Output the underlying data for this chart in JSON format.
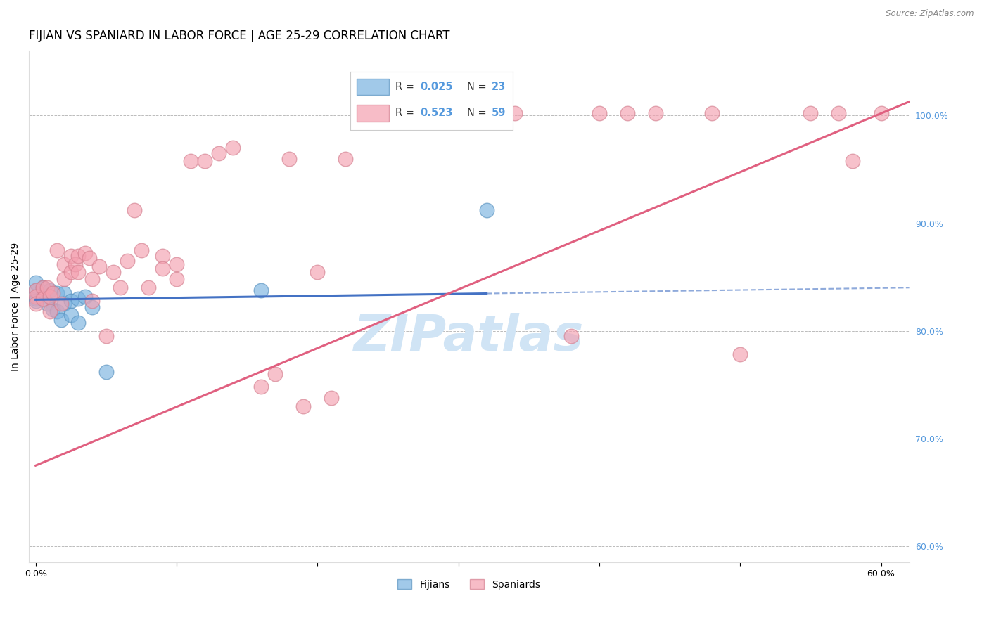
{
  "title": "FIJIAN VS SPANIARD IN LABOR FORCE | AGE 25-29 CORRELATION CHART",
  "source": "Source: ZipAtlas.com",
  "ylabel": "In Labor Force | Age 25-29",
  "xlim": [
    -0.005,
    0.62
  ],
  "ylim": [
    0.585,
    1.06
  ],
  "xtick_positions": [
    0.0,
    0.1,
    0.2,
    0.3,
    0.4,
    0.5,
    0.6
  ],
  "xticklabels": [
    "0.0%",
    "",
    "",
    "",
    "",
    "",
    "60.0%"
  ],
  "yticks_right": [
    0.6,
    0.7,
    0.8,
    0.9,
    1.0
  ],
  "yticklabels_right": [
    "60.0%",
    "70.0%",
    "80.0%",
    "90.0%",
    "100.0%"
  ],
  "fijian_color": "#7ab3e0",
  "fijian_edge_color": "#5a93c0",
  "spaniard_color": "#f4a0b0",
  "spaniard_edge_color": "#d48090",
  "fijian_line_color": "#4472c4",
  "spaniard_line_color": "#e06080",
  "background_color": "#ffffff",
  "grid_color": "#bbbbbb",
  "title_fontsize": 12,
  "axis_label_fontsize": 10,
  "tick_fontsize": 9,
  "right_tick_color": "#5599dd",
  "watermark_text": "ZIPatlas",
  "watermark_color": "#d0e4f5",
  "fijian_x": [
    0.0,
    0.0,
    0.0,
    0.0,
    0.005,
    0.005,
    0.008,
    0.01,
    0.012,
    0.015,
    0.015,
    0.018,
    0.02,
    0.02,
    0.025,
    0.025,
    0.03,
    0.03,
    0.035,
    0.04,
    0.05,
    0.16,
    0.32
  ],
  "fijian_y": [
    0.838,
    0.845,
    0.83,
    0.828,
    0.84,
    0.832,
    0.825,
    0.838,
    0.82,
    0.835,
    0.818,
    0.81,
    0.835,
    0.825,
    0.828,
    0.815,
    0.83,
    0.808,
    0.832,
    0.822,
    0.762,
    0.838,
    0.912
  ],
  "spaniard_x": [
    0.0,
    0.0,
    0.0,
    0.005,
    0.005,
    0.008,
    0.01,
    0.01,
    0.012,
    0.015,
    0.018,
    0.02,
    0.02,
    0.025,
    0.025,
    0.028,
    0.03,
    0.03,
    0.035,
    0.038,
    0.04,
    0.04,
    0.045,
    0.05,
    0.055,
    0.06,
    0.065,
    0.07,
    0.075,
    0.08,
    0.09,
    0.09,
    0.1,
    0.1,
    0.11,
    0.12,
    0.13,
    0.14,
    0.16,
    0.17,
    0.18,
    0.19,
    0.2,
    0.21,
    0.22,
    0.24,
    0.27,
    0.3,
    0.34,
    0.38,
    0.4,
    0.42,
    0.44,
    0.48,
    0.5,
    0.55,
    0.57,
    0.58,
    0.6
  ],
  "spaniard_y": [
    0.838,
    0.832,
    0.825,
    0.84,
    0.83,
    0.84,
    0.832,
    0.818,
    0.835,
    0.875,
    0.825,
    0.862,
    0.848,
    0.87,
    0.855,
    0.862,
    0.87,
    0.855,
    0.872,
    0.868,
    0.848,
    0.828,
    0.86,
    0.795,
    0.855,
    0.84,
    0.865,
    0.912,
    0.875,
    0.84,
    0.87,
    0.858,
    0.862,
    0.848,
    0.958,
    0.958,
    0.965,
    0.97,
    0.748,
    0.76,
    0.96,
    0.73,
    0.855,
    0.738,
    0.96,
    1.002,
    1.002,
    1.002,
    1.002,
    0.795,
    1.002,
    1.002,
    1.002,
    1.002,
    0.778,
    1.002,
    1.002,
    0.958,
    1.002
  ],
  "fijian_line_x0": 0.0,
  "fijian_line_x_solid_end": 0.32,
  "fijian_line_x_dashed_end": 0.62,
  "fijian_line_intercept": 0.829,
  "fijian_line_slope": 0.018,
  "spaniard_line_x0": 0.0,
  "spaniard_line_x1": 0.62,
  "spaniard_line_intercept": 0.675,
  "spaniard_line_slope": 0.545
}
